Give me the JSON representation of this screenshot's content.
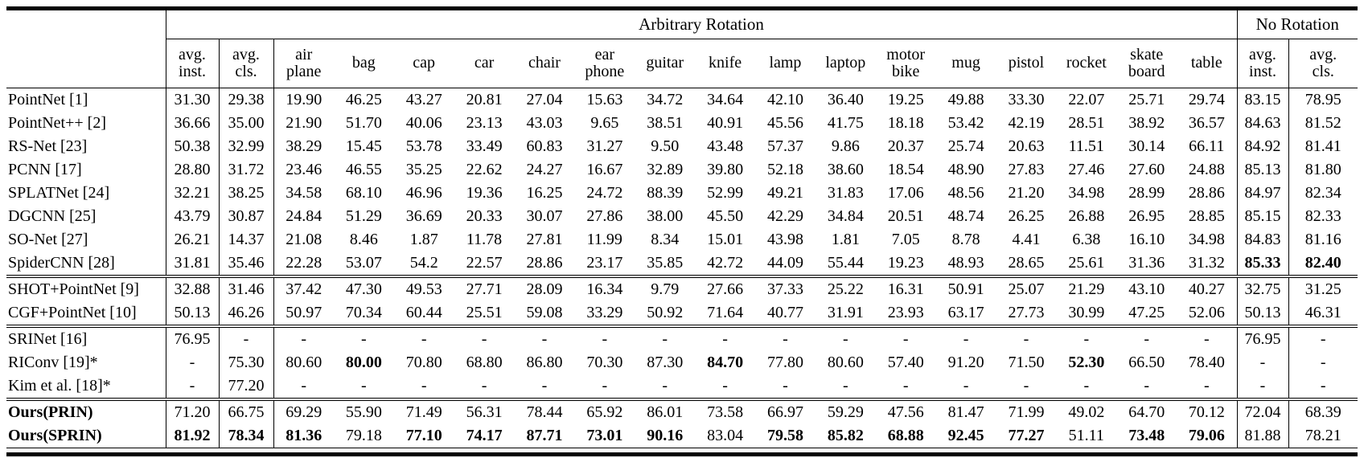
{
  "colors": {
    "text": "#000000",
    "background": "#ffffff",
    "rule": "#000000"
  },
  "table": {
    "group_headers": [
      {
        "label": "",
        "span": 1
      },
      {
        "label": "Arbitrary Rotation",
        "span": 18
      },
      {
        "label": "No Rotation",
        "span": 2
      }
    ],
    "column_headers": [
      {
        "lines": [
          "avg.",
          "inst."
        ]
      },
      {
        "lines": [
          "avg.",
          "cls."
        ]
      },
      {
        "lines": [
          "air",
          "plane"
        ]
      },
      {
        "lines": [
          "bag"
        ]
      },
      {
        "lines": [
          "cap"
        ]
      },
      {
        "lines": [
          "car"
        ]
      },
      {
        "lines": [
          "chair"
        ]
      },
      {
        "lines": [
          "ear",
          "phone"
        ]
      },
      {
        "lines": [
          "guitar"
        ]
      },
      {
        "lines": [
          "knife"
        ]
      },
      {
        "lines": [
          "lamp"
        ]
      },
      {
        "lines": [
          "laptop"
        ]
      },
      {
        "lines": [
          "motor",
          "bike"
        ]
      },
      {
        "lines": [
          "mug"
        ]
      },
      {
        "lines": [
          "pistol"
        ]
      },
      {
        "lines": [
          "rocket"
        ]
      },
      {
        "lines": [
          "skate",
          "board"
        ]
      },
      {
        "lines": [
          "table"
        ]
      },
      {
        "lines": [
          "avg.",
          "inst."
        ]
      },
      {
        "lines": [
          "avg.",
          "cls."
        ]
      }
    ],
    "rows": [
      {
        "method": "PointNet [1]",
        "bold_method": false,
        "group_start": false,
        "values": [
          "31.30",
          "29.38",
          "19.90",
          "46.25",
          "43.27",
          "20.81",
          "27.04",
          "15.63",
          "34.72",
          "34.64",
          "42.10",
          "36.40",
          "19.25",
          "49.88",
          "33.30",
          "22.07",
          "25.71",
          "29.74",
          "83.15",
          "78.95"
        ]
      },
      {
        "method": "PointNet++ [2]",
        "bold_method": false,
        "group_start": false,
        "values": [
          "36.66",
          "35.00",
          "21.90",
          "51.70",
          "40.06",
          "23.13",
          "43.03",
          "9.65",
          "38.51",
          "40.91",
          "45.56",
          "41.75",
          "18.18",
          "53.42",
          "42.19",
          "28.51",
          "38.92",
          "36.57",
          "84.63",
          "81.52"
        ]
      },
      {
        "method": "RS-Net [23]",
        "bold_method": false,
        "group_start": false,
        "values": [
          "50.38",
          "32.99",
          "38.29",
          "15.45",
          "53.78",
          "33.49",
          "60.83",
          "31.27",
          "9.50",
          "43.48",
          "57.37",
          "9.86",
          "20.37",
          "25.74",
          "20.63",
          "11.51",
          "30.14",
          "66.11",
          "84.92",
          "81.41"
        ]
      },
      {
        "method": "PCNN [17]",
        "bold_method": false,
        "group_start": false,
        "values": [
          "28.80",
          "31.72",
          "23.46",
          "46.55",
          "35.25",
          "22.62",
          "24.27",
          "16.67",
          "32.89",
          "39.80",
          "52.18",
          "38.60",
          "18.54",
          "48.90",
          "27.83",
          "27.46",
          "27.60",
          "24.88",
          "85.13",
          "81.80"
        ]
      },
      {
        "method": "SPLATNet [24]",
        "bold_method": false,
        "group_start": false,
        "values": [
          "32.21",
          "38.25",
          "34.58",
          "68.10",
          "46.96",
          "19.36",
          "16.25",
          "24.72",
          "88.39",
          "52.99",
          "49.21",
          "31.83",
          "17.06",
          "48.56",
          "21.20",
          "34.98",
          "28.99",
          "28.86",
          "84.97",
          "82.34"
        ]
      },
      {
        "method": "DGCNN [25]",
        "bold_method": false,
        "group_start": false,
        "values": [
          "43.79",
          "30.87",
          "24.84",
          "51.29",
          "36.69",
          "20.33",
          "30.07",
          "27.86",
          "38.00",
          "45.50",
          "42.29",
          "34.84",
          "20.51",
          "48.74",
          "26.25",
          "26.88",
          "26.95",
          "28.85",
          "85.15",
          "82.33"
        ]
      },
      {
        "method": "SO-Net [27]",
        "bold_method": false,
        "group_start": false,
        "values": [
          "26.21",
          "14.37",
          "21.08",
          "8.46",
          "1.87",
          "11.78",
          "27.81",
          "11.99",
          "8.34",
          "15.01",
          "43.98",
          "1.81",
          "7.05",
          "8.78",
          "4.41",
          "6.38",
          "16.10",
          "34.98",
          "84.83",
          "81.16"
        ]
      },
      {
        "method": "SpiderCNN [28]",
        "bold_method": false,
        "group_start": false,
        "values": [
          "31.81",
          "35.46",
          "22.28",
          "53.07",
          "54.2",
          "22.57",
          "28.86",
          "23.17",
          "35.85",
          "42.72",
          "44.09",
          "55.44",
          "19.23",
          "48.93",
          "28.65",
          "25.61",
          "31.36",
          "31.32",
          "**85.33**",
          "**82.40**"
        ]
      },
      {
        "method": "SHOT+PointNet [9]",
        "bold_method": false,
        "group_start": true,
        "values": [
          "32.88",
          "31.46",
          "37.42",
          "47.30",
          "49.53",
          "27.71",
          "28.09",
          "16.34",
          "9.79",
          "27.66",
          "37.33",
          "25.22",
          "16.31",
          "50.91",
          "25.07",
          "21.29",
          "43.10",
          "40.27",
          "32.75",
          "31.25"
        ]
      },
      {
        "method": "CGF+PointNet [10]",
        "bold_method": false,
        "group_start": false,
        "values": [
          "50.13",
          "46.26",
          "50.97",
          "70.34",
          "60.44",
          "25.51",
          "59.08",
          "33.29",
          "50.92",
          "71.64",
          "40.77",
          "31.91",
          "23.93",
          "63.17",
          "27.73",
          "30.99",
          "47.25",
          "52.06",
          "50.13",
          "46.31"
        ]
      },
      {
        "method": "SRINet [16]",
        "bold_method": false,
        "group_start": true,
        "values": [
          "76.95",
          "-",
          "-",
          "-",
          "-",
          "-",
          "-",
          "-",
          "-",
          "-",
          "-",
          "-",
          "-",
          "-",
          "-",
          "-",
          "-",
          "-",
          "76.95",
          "-"
        ]
      },
      {
        "method": "RIConv [19]*",
        "bold_method": false,
        "group_start": false,
        "values": [
          "-",
          "75.30",
          "80.60",
          "**80.00**",
          "70.80",
          "68.80",
          "86.80",
          "70.30",
          "87.30",
          "**84.70**",
          "77.80",
          "80.60",
          "57.40",
          "91.20",
          "71.50",
          "**52.30**",
          "66.50",
          "78.40",
          "-",
          "-"
        ]
      },
      {
        "method": "Kim et al. [18]*",
        "bold_method": false,
        "group_start": false,
        "values": [
          "-",
          "77.20",
          "-",
          "-",
          "-",
          "-",
          "-",
          "-",
          "-",
          "-",
          "-",
          "-",
          "-",
          "-",
          "-",
          "-",
          "-",
          "-",
          "-",
          "-"
        ]
      },
      {
        "method": "Ours(PRIN)",
        "bold_method": true,
        "group_start": true,
        "values": [
          "71.20",
          "66.75",
          "69.29",
          "55.90",
          "71.49",
          "56.31",
          "78.44",
          "65.92",
          "86.01",
          "73.58",
          "66.97",
          "59.29",
          "47.56",
          "81.47",
          "71.99",
          "49.02",
          "64.70",
          "70.12",
          "72.04",
          "68.39"
        ]
      },
      {
        "method": "Ours(SPRIN)",
        "bold_method": true,
        "group_start": false,
        "values": [
          "**81.92**",
          "**78.34**",
          "**81.36**",
          "79.18",
          "**77.10**",
          "**74.17**",
          "**87.71**",
          "**73.01**",
          "**90.16**",
          "83.04",
          "**79.58**",
          "**85.82**",
          "**68.88**",
          "**92.45**",
          "**77.27**",
          "51.11",
          "**73.48**",
          "**79.06**",
          "81.88",
          "78.21"
        ]
      }
    ]
  }
}
